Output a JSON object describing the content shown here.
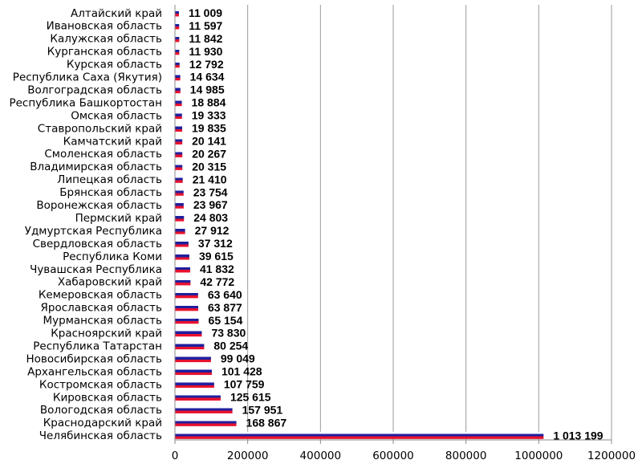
{
  "chart_data": {
    "type": "bar",
    "orientation": "horizontal",
    "categories": [
      "Алтайский край",
      "Ивановская область",
      "Калужская область",
      "Курганская область",
      "Курская область",
      "Республика Саха (Якутия)",
      "Волгоградская область",
      "Республика Башкортостан",
      "Омская область",
      "Ставропольский край",
      "Камчатский край",
      "Смоленская область",
      "Владимирская область",
      "Липецкая область",
      "Брянская область",
      "Воронежская область",
      "Пермский край",
      "Удмуртская Республика",
      "Свердловская область",
      "Республика Коми",
      "Чувашская Республика",
      "Хабаровский край",
      "Кемеровская область",
      "Ярославская область",
      "Мурманская область",
      "Красноярский край",
      "Республика Татарстан",
      "Новосибирская область",
      "Архангельская область",
      "Костромская область",
      "Кировская область",
      "Вологодская область",
      "Краснодарский край",
      "Челябинская область"
    ],
    "values": [
      11009,
      11597,
      11842,
      11930,
      12792,
      14634,
      14985,
      18884,
      19333,
      19835,
      20141,
      20267,
      20315,
      21410,
      23754,
      23967,
      24803,
      27912,
      37312,
      39615,
      41832,
      42772,
      63640,
      63877,
      65154,
      73830,
      80254,
      99049,
      101428,
      107759,
      125615,
      157951,
      168867,
      1013199
    ],
    "value_labels": [
      "11 009",
      "11 597",
      "11 842",
      "11 930",
      "12 792",
      "14 634",
      "14 985",
      "18 884",
      "19 333",
      "19 835",
      "20 141",
      "20 267",
      "20 315",
      "21 410",
      "23 754",
      "23 967",
      "24 803",
      "27 912",
      "37 312",
      "39 615",
      "41 832",
      "42 772",
      "63 640",
      "63 877",
      "65 154",
      "73 830",
      "80 254",
      "99 049",
      "101 428",
      "107 759",
      "125 615",
      "157 951",
      "168 867",
      "1 013 199"
    ],
    "xlim": [
      0,
      1200000
    ],
    "x_ticks": [
      0,
      200000,
      400000,
      600000,
      800000,
      1000000,
      1200000
    ],
    "x_tick_labels": [
      "0",
      "200000",
      "400000",
      "600000",
      "800000",
      "1000000",
      "1200000"
    ],
    "grid": "vertical",
    "legend": "none",
    "title": "",
    "xlabel": "",
    "ylabel": "",
    "bar_stripe_colors": [
      "#ffffff",
      "#1f1f9e",
      "#e8112d"
    ]
  }
}
